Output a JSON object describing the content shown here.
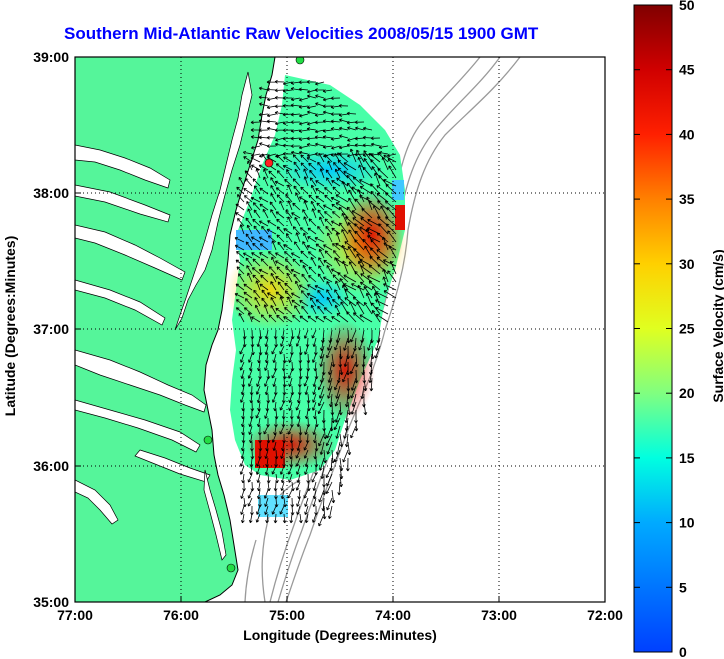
{
  "title": "Southern Mid-Atlantic Raw Velocities 2008/05/15 1900 GMT",
  "axes": {
    "xlabel": "Longitude (Degrees:Minutes)",
    "ylabel": "Latitude (Degrees:Minutes)",
    "x_ticks": [
      "77:00",
      "76:00",
      "75:00",
      "74:00",
      "73:00",
      "72:00"
    ],
    "y_ticks": [
      "39:00",
      "38:00",
      "37:00",
      "36:00",
      "35:00"
    ]
  },
  "colorbar": {
    "label": "Surface Velocity (cm/s)",
    "min": 0,
    "max": 50,
    "ticks": [
      "50",
      "45",
      "40",
      "35",
      "30",
      "25",
      "20",
      "15",
      "10",
      "5",
      "0"
    ]
  },
  "colors": {
    "land": "#55f59a",
    "title": "#0000ff",
    "station_green": "#22dd44",
    "station_red": "#ff2222"
  }
}
